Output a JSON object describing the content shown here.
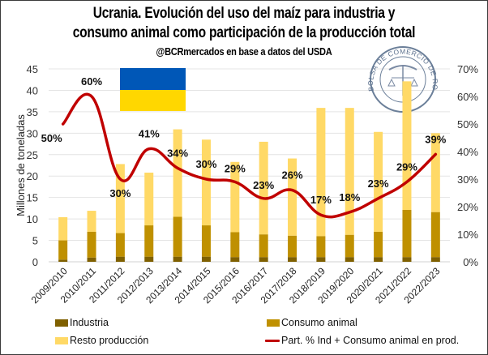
{
  "chart_data": {
    "type": "bar",
    "stacked": true,
    "title": "Ucrania. Evolución del uso del maíz para industria y",
    "title_line2": "consumo animal como participación de la producción total",
    "subtitle": "@BCRmercados en base a datos del USDA",
    "ylabel": "Millones de toneladas",
    "ylim": [
      0,
      45
    ],
    "yticks": [
      0,
      5,
      10,
      15,
      20,
      25,
      30,
      35,
      40,
      45
    ],
    "y2lim": [
      0,
      70
    ],
    "y2ticks": [
      "0%",
      "10%",
      "20%",
      "30%",
      "40%",
      "50%",
      "60%",
      "70%"
    ],
    "grid": true,
    "legend_position": "bottom",
    "categories": [
      "2009/2010",
      "2010/2011",
      "2011/2012",
      "2012/2013",
      "2013/2014",
      "2014/2015",
      "2015/2016",
      "2016/2017",
      "2017/2018",
      "2018/2019",
      "2019/2020",
      "2020/2021",
      "2021/2022",
      "2022/2023"
    ],
    "series": [
      {
        "name": "Industria",
        "kind": "bar",
        "axis": "left",
        "color": "#7f6000",
        "values": [
          0.5,
          1.0,
          1.2,
          1.2,
          1.2,
          1.2,
          1.1,
          1.1,
          1.1,
          1.1,
          1.1,
          1.1,
          1.1,
          1.1
        ]
      },
      {
        "name": "Consumo animal",
        "kind": "bar",
        "axis": "left",
        "color": "#bf9000",
        "values": [
          4.5,
          6.0,
          5.5,
          7.3,
          9.3,
          7.3,
          5.8,
          5.3,
          5.0,
          4.9,
          5.2,
          5.9,
          11.0,
          10.5
        ]
      },
      {
        "name": "Resto producción",
        "kind": "bar",
        "axis": "left",
        "color": "#ffd966",
        "values": [
          5.4,
          4.9,
          16.1,
          12.3,
          20.4,
          20.0,
          16.4,
          21.6,
          18.0,
          29.9,
          29.6,
          23.3,
          30.0,
          18.4
        ]
      },
      {
        "name": "Part. % Ind + Consumo animal en prod.",
        "kind": "line",
        "axis": "right",
        "color": "#c00000",
        "values": [
          50,
          60,
          30,
          41,
          34,
          30,
          29,
          23,
          26,
          17,
          18,
          23,
          29,
          39
        ],
        "labels": [
          "50%",
          "60%",
          "30%",
          "41%",
          "34%",
          "30%",
          "29%",
          "23%",
          "26%",
          "17%",
          "18%",
          "23%",
          "29%",
          "39%"
        ]
      }
    ]
  },
  "decorations": {
    "flag": {
      "name": "Ukraine flag",
      "top_color": "#0057b7",
      "bottom_color": "#ffd700"
    },
    "logo_text": "BOLSA DE COMERCIO DE ROSARIO"
  }
}
